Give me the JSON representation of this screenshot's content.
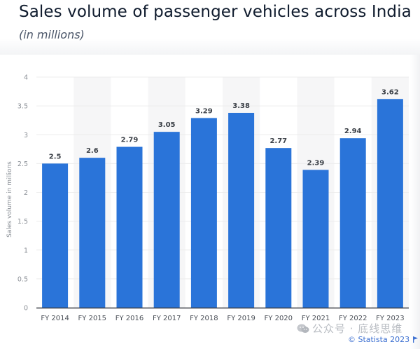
{
  "header": {
    "title": "Sales volume of passenger vehicles across India",
    "subtitle": "(in millions)"
  },
  "chart_data": {
    "type": "bar",
    "title": "Sales volume of passenger vehicles across India",
    "subtitle": "(in millions)",
    "xlabel": "",
    "ylabel": "Sales volume in millions",
    "categories": [
      "FY 2014",
      "FY 2015",
      "FY 2016",
      "FY 2017",
      "FY 2018",
      "FY 2019",
      "FY 2020",
      "FY 2021",
      "FY 2022",
      "FY 2023"
    ],
    "values": [
      2.5,
      2.6,
      2.79,
      3.05,
      3.29,
      3.38,
      2.77,
      2.39,
      2.94,
      3.62
    ],
    "value_labels": [
      "2.5",
      "2.6",
      "2.79",
      "3.05",
      "3.29",
      "3.38",
      "2.77",
      "2.39",
      "2.94",
      "3.62"
    ],
    "ylim": [
      0,
      4
    ],
    "yticks": [
      0,
      0.5,
      1,
      1.5,
      2,
      2.5,
      3,
      3.5,
      4
    ],
    "ytick_labels": [
      "0",
      "0.5",
      "1",
      "1.5",
      "2",
      "2.5",
      "3",
      "3.5",
      "4"
    ],
    "grid": true,
    "legend": "none",
    "colors": {
      "bar": "#2a74d9",
      "band": "#f6f6f7",
      "grid": "#ececec",
      "axis": "#3a3f47",
      "tick_text": "#8a8f96",
      "value_text": "#3c4148",
      "category_text": "#4a4f57"
    }
  },
  "footer": {
    "watermark": "公众号 · 底线思维",
    "credit": "© Statista 2023"
  }
}
